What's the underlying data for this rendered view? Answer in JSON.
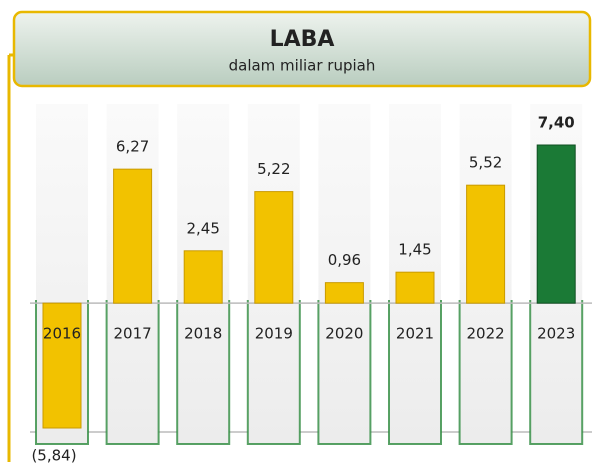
{
  "chart_data": {
    "type": "bar",
    "title": "LABA",
    "subtitle": "dalam miliar rupiah",
    "categories": [
      "2016",
      "2017",
      "2018",
      "2019",
      "2020",
      "2021",
      "2022",
      "2023"
    ],
    "values": [
      -5.84,
      6.27,
      2.45,
      5.22,
      0.96,
      1.45,
      5.52,
      7.4
    ],
    "value_labels": [
      "(5,84)",
      "6,27",
      "2,45",
      "5,22",
      "0,96",
      "1,45",
      "5,52",
      "7,40"
    ],
    "colors": [
      "#f2c200",
      "#f2c200",
      "#f2c200",
      "#f2c200",
      "#f2c200",
      "#f2c200",
      "#f2c200",
      "#1b7a36"
    ]
  }
}
